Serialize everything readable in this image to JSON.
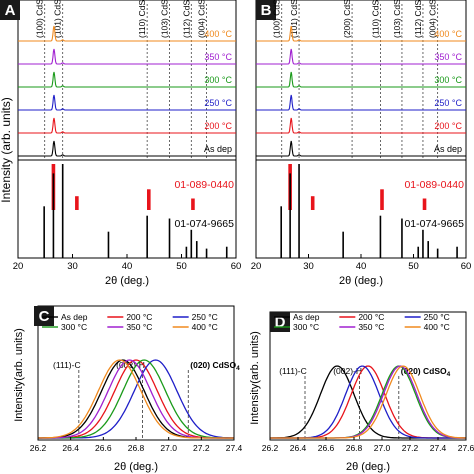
{
  "panels": {
    "A": {
      "letter": "A",
      "ylabel": "Intensity (arb. units)",
      "xlabel": "2θ (deg.)"
    },
    "B": {
      "letter": "B",
      "ylabel": "",
      "xlabel": "2θ (deg.)"
    },
    "C": {
      "letter": "C",
      "ylabel": "Intensity(arb. units)",
      "xlabel": "2θ (deg.)"
    },
    "D": {
      "letter": "D",
      "ylabel": "Intensity(arb. units)",
      "xlabel": "2θ (deg.)"
    }
  },
  "colors": {
    "As dep": "#000000",
    "200 °C": "#e8141b",
    "250 °C": "#1f1fc8",
    "300 °C": "#1a9a1a",
    "350 °C": "#a020d0",
    "400 °C": "#f08a1e",
    "ref_red": "#e8141b",
    "ref_black": "#000000"
  },
  "chart_data": [
    {
      "panel": "A",
      "type": "line",
      "xlabel": "2θ (deg.)",
      "ylabel": "Intensity (arb. units)",
      "xlim": [
        20,
        60
      ],
      "xticks": [
        20,
        30,
        40,
        50,
        60
      ],
      "series": [
        {
          "name": "400 °C",
          "peak": 26.6
        },
        {
          "name": "350 °C",
          "peak": 26.6
        },
        {
          "name": "300 °C",
          "peak": 26.6
        },
        {
          "name": "250 °C",
          "peak": 26.6
        },
        {
          "name": "200 °C",
          "peak": 26.6
        },
        {
          "name": "As dep",
          "peak": 26.6
        }
      ],
      "reference_lines": [
        {
          "label": "(100) CdS",
          "x": 24.9
        },
        {
          "label": "(101) CdS",
          "x": 28.2
        },
        {
          "label": "(110) CdS",
          "x": 43.7
        },
        {
          "label": "(103) CdS",
          "x": 47.8
        },
        {
          "label": "(112) CdS",
          "x": 51.8
        },
        {
          "label": "(004) CdS",
          "x": 54.6
        }
      ],
      "reference_patterns": [
        {
          "name": "01-089-0440",
          "color": "red",
          "x": [
            26.5,
            30.8,
            44.0,
            52.1
          ],
          "h": [
            1.0,
            0.3,
            0.45,
            0.25
          ]
        },
        {
          "name": "01-074-9665",
          "color": "black",
          "x": [
            24.8,
            26.5,
            28.2,
            36.6,
            43.7,
            47.8,
            50.9,
            51.8,
            52.8,
            54.6,
            58.3
          ],
          "h": [
            0.55,
            0.9,
            1.0,
            0.28,
            0.45,
            0.42,
            0.12,
            0.3,
            0.18,
            0.1,
            0.12
          ]
        }
      ]
    },
    {
      "panel": "B",
      "type": "line",
      "xlabel": "2θ (deg.)",
      "xlim": [
        20,
        60
      ],
      "xticks": [
        20,
        30,
        40,
        50,
        60
      ],
      "series": [
        {
          "name": "400 °C",
          "peak": 26.7
        },
        {
          "name": "350 °C",
          "peak": 26.7
        },
        {
          "name": "300 °C",
          "peak": 26.7
        },
        {
          "name": "250 °C",
          "peak": 26.7
        },
        {
          "name": "200 °C",
          "peak": 26.7
        },
        {
          "name": "As dep",
          "peak": 26.7
        }
      ],
      "reference_lines": [
        {
          "label": "(100) CdS",
          "x": 24.9
        },
        {
          "label": "(101) CdS",
          "x": 28.2
        },
        {
          "label": "(200) CdSO",
          "x": 38.3
        },
        {
          "label": "(110) CdS",
          "x": 43.7
        },
        {
          "label": "(103) CdS",
          "x": 47.8
        },
        {
          "label": "(112) CdS",
          "x": 51.8
        },
        {
          "label": "(004) CdS",
          "x": 54.6
        }
      ],
      "reference_patterns": [
        {
          "name": "01-089-0440",
          "color": "red",
          "x": [
            26.5,
            30.8,
            44.0,
            52.1
          ],
          "h": [
            1.0,
            0.3,
            0.45,
            0.25
          ]
        },
        {
          "name": "01-074-9665",
          "color": "black",
          "x": [
            24.8,
            26.5,
            28.2,
            36.6,
            43.7,
            47.8,
            50.9,
            51.8,
            52.8,
            54.6,
            58.3
          ],
          "h": [
            0.55,
            0.9,
            1.0,
            0.28,
            0.45,
            0.42,
            0.12,
            0.3,
            0.18,
            0.1,
            0.12
          ]
        }
      ]
    },
    {
      "panel": "C",
      "type": "line",
      "xlabel": "2θ (deg.)",
      "ylabel": "Intensity(arb. units)",
      "xlim": [
        26.2,
        27.4
      ],
      "xticks": [
        "26.2",
        "26.4",
        "26.6",
        "26.8",
        "27.0",
        "27.2",
        "27.4"
      ],
      "reference_lines": [
        {
          "label": "(111)-C",
          "x": 26.45
        },
        {
          "label": "(002)-H",
          "x": 26.84
        },
        {
          "label": "(020) CdSO",
          "sub": "4",
          "x": 27.12
        }
      ],
      "series": [
        {
          "name": "As dep",
          "peak": 26.72,
          "width": 0.13
        },
        {
          "name": "200 °C",
          "peak": 26.8,
          "width": 0.13
        },
        {
          "name": "250 °C",
          "peak": 26.92,
          "width": 0.13
        },
        {
          "name": "300 °C",
          "peak": 26.85,
          "width": 0.13
        },
        {
          "name": "350 °C",
          "peak": 26.76,
          "width": 0.13
        },
        {
          "name": "400 °C",
          "peak": 26.7,
          "width": 0.13
        }
      ]
    },
    {
      "panel": "D",
      "type": "line",
      "xlabel": "2θ (deg.)",
      "ylabel": "Intensity(arb. units)",
      "xlim": [
        26.2,
        27.6
      ],
      "xticks": [
        "26.2",
        "26.4",
        "26.6",
        "26.8",
        "27.0",
        "27.2",
        "27.4",
        "27.6"
      ],
      "reference_lines": [
        {
          "label": "(111)-C",
          "x": 26.45
        },
        {
          "label": "(002)-H",
          "x": 26.84
        },
        {
          "label": "(020) CdSO",
          "sub": "4",
          "x": 27.12
        }
      ],
      "series": [
        {
          "name": "As dep",
          "peak": 26.68,
          "width": 0.12
        },
        {
          "name": "200 °C",
          "peak": 26.9,
          "width": 0.12
        },
        {
          "name": "250 °C",
          "peak": 26.86,
          "width": 0.12
        },
        {
          "name": "300 °C",
          "peak": 27.12,
          "width": 0.12
        },
        {
          "name": "350 °C",
          "peak": 27.13,
          "width": 0.12
        },
        {
          "name": "400 °C",
          "peak": 27.15,
          "width": 0.12
        }
      ]
    }
  ]
}
